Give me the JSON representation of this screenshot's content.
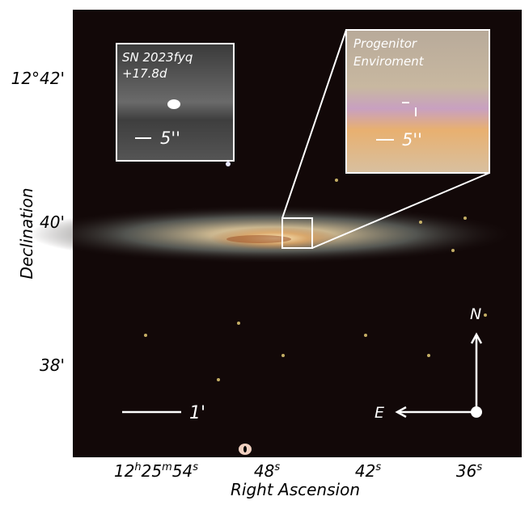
{
  "figure": {
    "xlabel": "Right Ascension",
    "ylabel": "Declination",
    "x_ticks": [
      {
        "h": "12",
        "hu": "h",
        "m": "25",
        "mu": "m",
        "s": "54",
        "su": "s"
      },
      {
        "s": "48",
        "su": "s"
      },
      {
        "s": "42",
        "su": "s"
      },
      {
        "s": "36",
        "su": "s"
      }
    ],
    "y_ticks": [
      "12°42'",
      "40'",
      "38'"
    ],
    "scale_bar_label": "1'",
    "compass": {
      "north": "N",
      "east": "E"
    },
    "inset_left": {
      "title_line1": "SN 2023fyq",
      "title_line2": "+17.8d",
      "scale_label": "5''"
    },
    "inset_right": {
      "title_line1": "Progenitor",
      "title_line2": "Enviroment",
      "scale_label": "5''"
    }
  }
}
